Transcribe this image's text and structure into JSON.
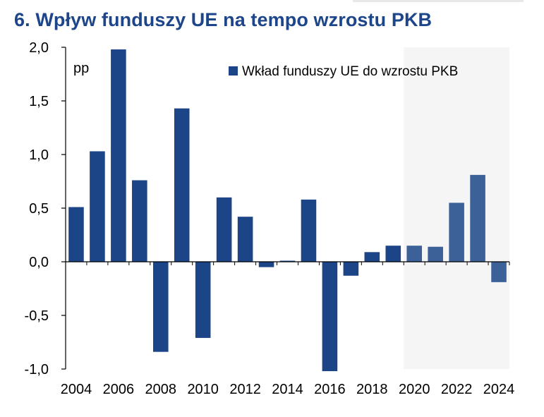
{
  "title": "6. Wpływ funduszy UE na tempo wzrostu PKB",
  "chart_data": {
    "type": "bar",
    "ylabel": "pp",
    "xlabel": "",
    "ylim": [
      -1.0,
      2.0
    ],
    "y_ticks": [
      "2,0",
      "1,5",
      "1,0",
      "0,5",
      "0,0",
      "-0,5",
      "-1,0"
    ],
    "y_tick_values": [
      2.0,
      1.5,
      1.0,
      0.5,
      0.0,
      -0.5,
      -1.0
    ],
    "x_tick_labels": [
      "2004",
      "2006",
      "2008",
      "2010",
      "2012",
      "2014",
      "2016",
      "2018",
      "2020",
      "2022",
      "2024"
    ],
    "categories": [
      "2004",
      "2005",
      "2006",
      "2007",
      "2008",
      "2009",
      "2010",
      "2011",
      "2012",
      "2013",
      "2014",
      "2015",
      "2016",
      "2017",
      "2018",
      "2019",
      "2020",
      "2021",
      "2022",
      "2023",
      "2024"
    ],
    "series": [
      {
        "name": "Wkład funduszy UE do wzrostu PKB",
        "values": [
          0.51,
          1.03,
          1.98,
          0.76,
          -0.84,
          1.43,
          -0.71,
          0.6,
          0.42,
          -0.05,
          0.01,
          0.58,
          -1.02,
          -0.13,
          0.09,
          0.15,
          0.15,
          0.14,
          0.55,
          0.81,
          -0.19
        ]
      }
    ],
    "forecast_from": "2020",
    "grid": false,
    "legend_position": "top-right",
    "colors": {
      "actual": "#1c4587",
      "forecast": "#3c6199",
      "forecast_shade": "#f5f5f5",
      "axis": "#000000"
    }
  }
}
